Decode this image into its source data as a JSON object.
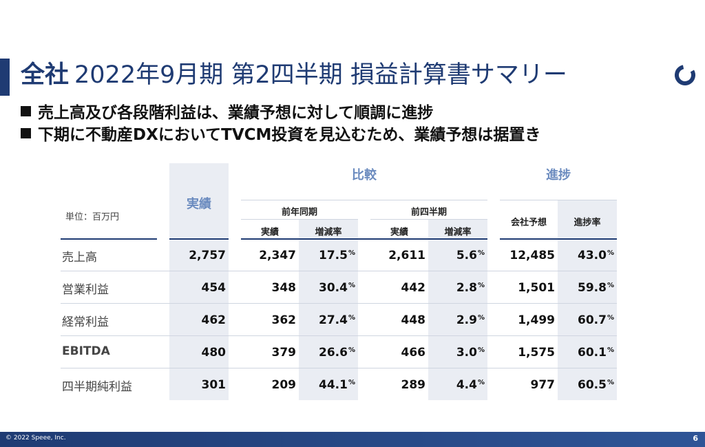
{
  "title": {
    "strong": "全社",
    "rest": "2022年9月期 第2四半期 損益計算書サマリー"
  },
  "bullets": [
    "売上高及び各段階利益は、業績予想に対して順調に進捗",
    "下期に不動産DXにおいてTVCM投資を見込むため、業績予想は据置き"
  ],
  "table": {
    "unit": "単位：百万円",
    "headers": {
      "actual": "実績",
      "comparison": "比較",
      "progress": "進捗",
      "prev_year": "前年同期",
      "prev_quarter": "前四半期",
      "sub_actual": "実績",
      "sub_change": "増減率",
      "forecast": "会社予想",
      "progress_rate": "進捗率"
    },
    "rows": [
      {
        "label": "売上高",
        "actual": "2,757",
        "py_actual": "2,347",
        "py_change": "17.5",
        "pq_actual": "2,611",
        "pq_change": "5.6",
        "forecast": "12,485",
        "rate": "43.0"
      },
      {
        "label": "営業利益",
        "actual": "454",
        "py_actual": "348",
        "py_change": "30.4",
        "pq_actual": "442",
        "pq_change": "2.8",
        "forecast": "1,501",
        "rate": "59.8"
      },
      {
        "label": "経常利益",
        "actual": "462",
        "py_actual": "362",
        "py_change": "27.4",
        "pq_actual": "448",
        "pq_change": "2.9",
        "forecast": "1,499",
        "rate": "60.7"
      },
      {
        "label": "EBITDA",
        "actual": "480",
        "py_actual": "379",
        "py_change": "26.6",
        "pq_actual": "466",
        "pq_change": "3.0",
        "forecast": "1,575",
        "rate": "60.1"
      },
      {
        "label": "四半期純利益",
        "actual": "301",
        "py_actual": "209",
        "py_change": "44.1",
        "pq_actual": "289",
        "pq_change": "4.4",
        "forecast": "977",
        "rate": "60.5"
      }
    ],
    "pct_symbol": "%"
  },
  "footer": {
    "copyright": "© 2022 Speee, Inc.",
    "page": "6"
  },
  "colors": {
    "brand": "#1f3b73",
    "accent": "#6b8bbf",
    "column_bg": "#eaedf3"
  },
  "icons": {
    "logo": "speee-ring-logo"
  }
}
